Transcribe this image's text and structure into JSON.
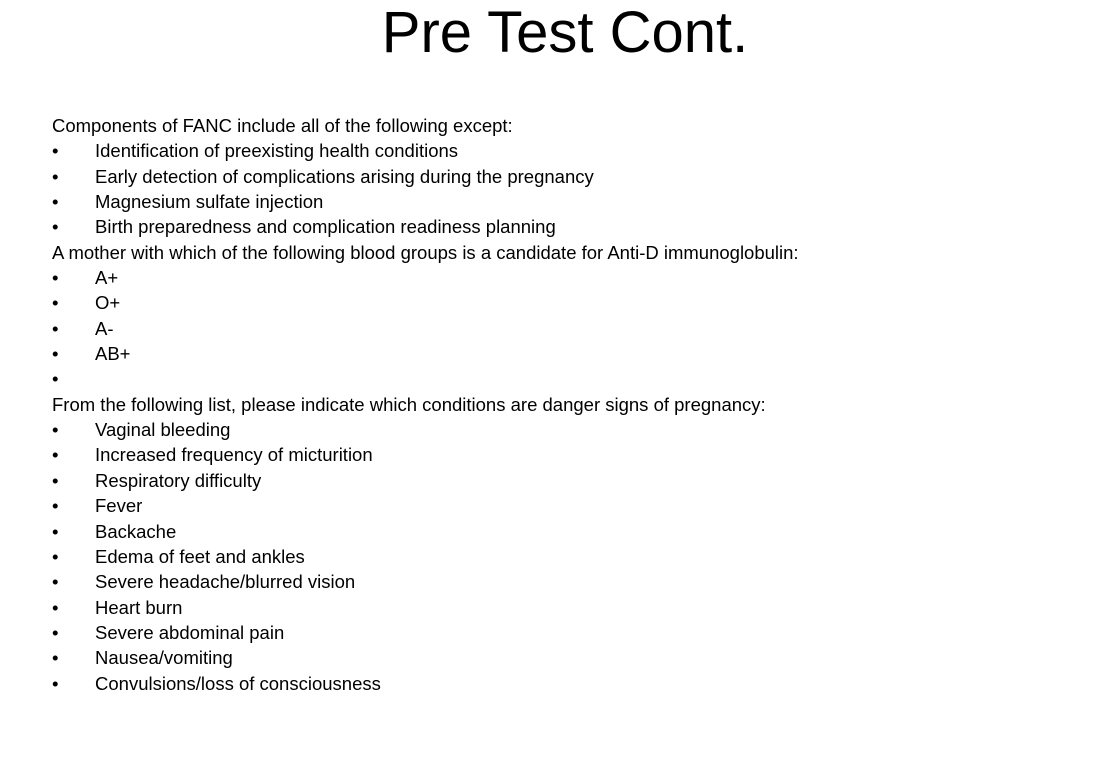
{
  "slide": {
    "title": "Pre Test Cont.",
    "bullet_char": "•",
    "questions": [
      {
        "prompt": "Components of FANC include all of the following except:",
        "options": [
          "Identification of preexisting health conditions",
          "Early detection of complications arising during the pregnancy",
          "Magnesium sulfate injection",
          "Birth preparedness and complication readiness planning"
        ]
      },
      {
        "prompt": "A mother with which of the following blood groups is a candidate for Anti-D immunoglobulin:",
        "options": [
          "A+",
          "O+",
          "A-",
          "AB+",
          ""
        ]
      },
      {
        "prompt": "From the following list, please indicate which conditions are danger signs of pregnancy:",
        "options": [
          "Vaginal bleeding",
          "Increased frequency of micturition",
          "Respiratory difficulty",
          "Fever",
          "Backache",
          "Edema of feet and ankles",
          "Severe headache/blurred vision",
          "Heart burn",
          "Severe abdominal pain",
          "Nausea/vomiting",
          "Convulsions/loss of consciousness"
        ]
      }
    ]
  }
}
